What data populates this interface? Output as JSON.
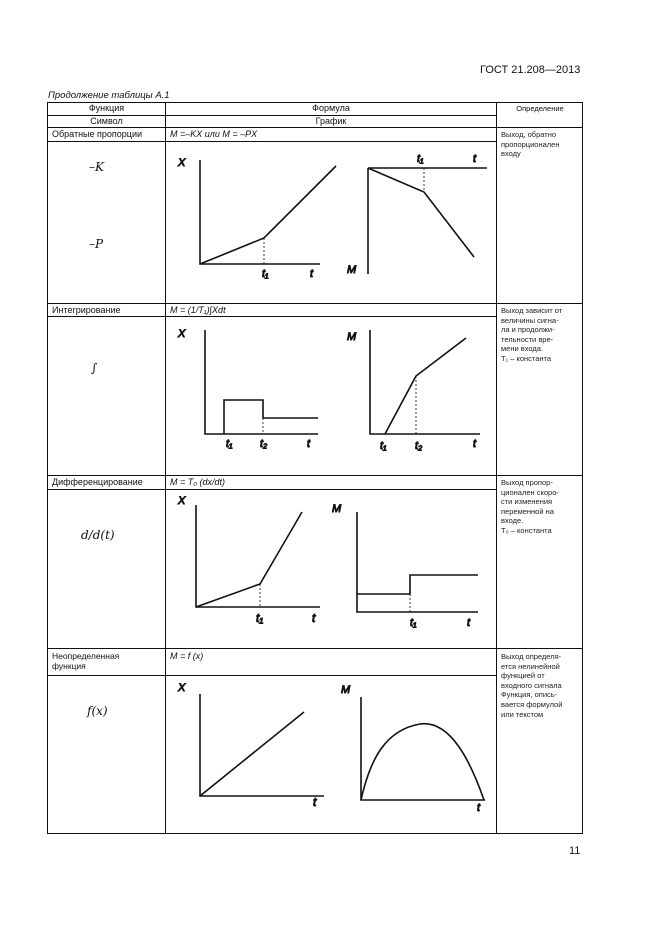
{
  "document": {
    "standard": "ГОСТ 21.208—2013",
    "caption": "Продолжение таблицы А.1",
    "page_number": "11"
  },
  "table": {
    "headers": {
      "function": "Функция",
      "formula": "Формула",
      "definition": "Определение",
      "symbol": "Символ",
      "graph": "График"
    },
    "rows": [
      {
        "function": "Обратные пропорции",
        "formula": "M =–KX или M = –PX",
        "definition": "Выход, обратно\nпропорционален\nвходу",
        "symbols": [
          "–K",
          "–P"
        ],
        "graph_labels": {
          "left": {
            "y": "X",
            "x": "t",
            "mark": "t₁"
          },
          "right": {
            "y": "M",
            "x": "t",
            "mark": "t₁"
          }
        }
      },
      {
        "function": "Интегрирование",
        "formula": "M = (1/T₁)∫Xdt",
        "definition": "Выход зависит от\nвеличины сигна-\nла и продолжи-\nтельности вре-\nмени входа.\nT₁ – константа",
        "symbols": [
          "∫"
        ],
        "graph_labels": {
          "left": {
            "y": "X",
            "x": "t",
            "mark1": "t₁",
            "mark2": "t₂"
          },
          "right": {
            "y": "M",
            "x": "t",
            "mark1": "t₁",
            "mark2": "t₂"
          }
        }
      },
      {
        "function": "Дифференцирование",
        "formula": "M = T₀ (dx/dt)",
        "definition": "Выход пропор-\nционален скоро-\nсти изменения\nпеременной на\nвходе.\nT₀ – константа",
        "symbols": [
          "d/d(t)"
        ],
        "graph_labels": {
          "left": {
            "y": "X",
            "x": "t",
            "mark": "t₁"
          },
          "right": {
            "y": "M",
            "x": "t",
            "mark": "t₁"
          }
        }
      },
      {
        "function": "Неопределенная\nфункция",
        "formula": "M = f (x)",
        "definition": "Выход определя-\nется нелинейной\nфункцией от\nвходного сигнала\nФункция, опись-\nвается формулой\nили текстом",
        "symbols": [
          "f(x)"
        ],
        "graph_labels": {
          "left": {
            "y": "X",
            "x": "t"
          },
          "right": {
            "y": "M",
            "x": "t"
          }
        }
      }
    ]
  }
}
